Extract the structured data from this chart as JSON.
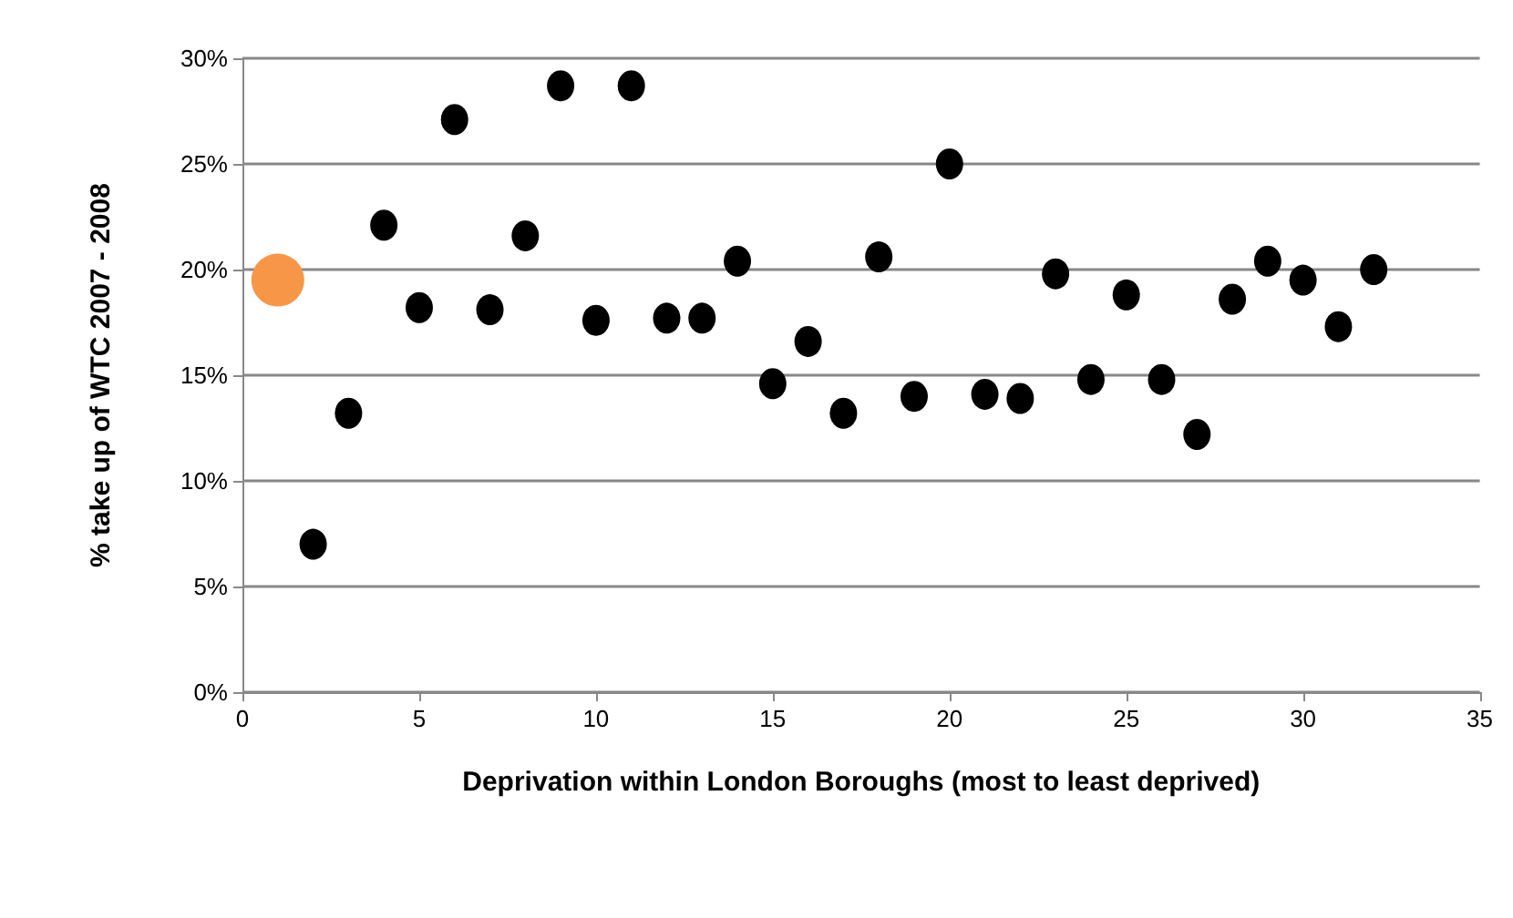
{
  "chart_data": {
    "type": "scatter",
    "xlabel": "Deprivation within London Boroughs (most to least deprived)",
    "ylabel": "% take up of WTC 2007 - 2008",
    "series": [
      {
        "color": "#f79646",
        "x": [
          1
        ],
        "values": [
          19.5
        ]
      },
      {
        "color": "#000000",
        "x": [
          2,
          3,
          4,
          5,
          6,
          7,
          8,
          9,
          10,
          11,
          12,
          13,
          14,
          15,
          16,
          17,
          18,
          19,
          20,
          21,
          22,
          23,
          24,
          25,
          26,
          27,
          28,
          29,
          30,
          31,
          32
        ],
        "values": [
          7.0,
          13.2,
          22.1,
          18.2,
          27.1,
          18.1,
          21.6,
          28.7,
          17.6,
          28.7,
          17.7,
          17.7,
          20.4,
          14.6,
          16.6,
          13.2,
          20.6,
          14.0,
          25.0,
          14.1,
          13.9,
          19.8,
          14.8,
          18.8,
          14.8,
          12.2,
          18.6,
          20.4,
          19.5,
          17.3,
          20.0
        ]
      }
    ],
    "xlim": [
      0,
      35
    ],
    "xticks": [
      0,
      5,
      10,
      15,
      20,
      25,
      30,
      35
    ],
    "ylim": [
      0,
      30
    ],
    "yticks": [
      {
        "value": 0,
        "label": "0%"
      },
      {
        "value": 5,
        "label": "5%"
      },
      {
        "value": 10,
        "label": "10%"
      },
      {
        "value": 15,
        "label": "15%"
      },
      {
        "value": 20,
        "label": "20%"
      },
      {
        "value": 25,
        "label": "25%"
      },
      {
        "value": 30,
        "label": "30%"
      }
    ],
    "grid": "y",
    "marker": "circle"
  }
}
